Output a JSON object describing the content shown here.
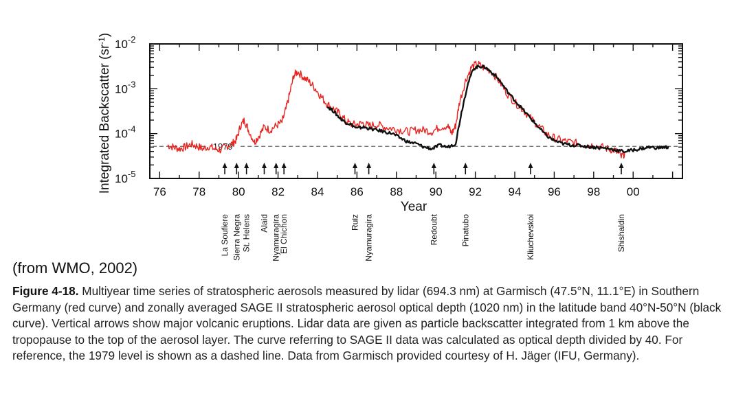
{
  "chart_data": {
    "type": "line",
    "ylabel": "Integrated Backscatter (sr",
    "ylabel_sup": "-1",
    "ylabel_close": ")",
    "xlabel": "Year",
    "y_scale": "log",
    "ylim": [
      1e-05,
      0.01
    ],
    "xlim": [
      1975.5,
      2002.5
    ],
    "y_tick_labels": [
      {
        "value": 1e-05,
        "base": "10",
        "exp": "-5"
      },
      {
        "value": 0.0001,
        "base": "10",
        "exp": "-4"
      },
      {
        "value": 0.001,
        "base": "10",
        "exp": "-3"
      },
      {
        "value": 0.01,
        "base": "10",
        "exp": "-2"
      }
    ],
    "x_ticks": [
      {
        "value": 1976,
        "label": "76"
      },
      {
        "value": 1978,
        "label": "78"
      },
      {
        "value": 1980,
        "label": "80"
      },
      {
        "value": 1982,
        "label": "82"
      },
      {
        "value": 1984,
        "label": "84"
      },
      {
        "value": 1986,
        "label": "86"
      },
      {
        "value": 1988,
        "label": "88"
      },
      {
        "value": 1990,
        "label": "90"
      },
      {
        "value": 1992,
        "label": "92"
      },
      {
        "value": 1994,
        "label": "94"
      },
      {
        "value": 1996,
        "label": "96"
      },
      {
        "value": 1998,
        "label": "98"
      },
      {
        "value": 2000,
        "label": "00"
      }
    ],
    "reference_line": {
      "label": "1979",
      "value": 5.2e-05
    },
    "series": [
      {
        "color": "#e8231f",
        "points": [
          [
            1976.4,
            5.5e-05
          ],
          [
            1976.7,
            5e-05
          ],
          [
            1977.0,
            4.6e-05
          ],
          [
            1977.3,
            5e-05
          ],
          [
            1977.6,
            5.8e-05
          ],
          [
            1977.9,
            5.2e-05
          ],
          [
            1978.2,
            4.6e-05
          ],
          [
            1978.5,
            5.2e-05
          ],
          [
            1978.8,
            4.5e-05
          ],
          [
            1979.1,
            4.3e-05
          ],
          [
            1979.4,
            5.3e-05
          ],
          [
            1979.7,
            6e-05
          ],
          [
            1979.9,
            7.5e-05
          ],
          [
            1980.1,
            0.00015
          ],
          [
            1980.3,
            0.0002
          ],
          [
            1980.5,
            0.00012
          ],
          [
            1980.8,
            6.5e-05
          ],
          [
            1981.0,
            8.5e-05
          ],
          [
            1981.3,
            0.00014
          ],
          [
            1981.6,
            0.00012
          ],
          [
            1981.9,
            0.00015
          ],
          [
            1982.2,
            0.00018
          ],
          [
            1982.4,
            0.00035
          ],
          [
            1982.6,
            0.0008
          ],
          [
            1982.8,
            0.002
          ],
          [
            1983.0,
            0.0024
          ],
          [
            1983.3,
            0.0018
          ],
          [
            1983.6,
            0.0014
          ],
          [
            1983.9,
            0.001
          ],
          [
            1984.2,
            0.00065
          ],
          [
            1984.5,
            0.00045
          ],
          [
            1984.8,
            0.00036
          ],
          [
            1985.1,
            0.00028
          ],
          [
            1985.4,
            0.0002
          ],
          [
            1985.7,
            0.00016
          ],
          [
            1986.0,
            0.00016
          ],
          [
            1986.3,
            0.00017
          ],
          [
            1986.6,
            0.00015
          ],
          [
            1987.0,
            0.00016
          ],
          [
            1987.4,
            0.00014
          ],
          [
            1987.8,
            0.00013
          ],
          [
            1988.2,
            0.00012
          ],
          [
            1988.6,
            0.00011
          ],
          [
            1989.0,
            0.00012
          ],
          [
            1989.4,
            0.00012
          ],
          [
            1989.8,
            0.00011
          ],
          [
            1990.2,
            0.00014
          ],
          [
            1990.6,
            0.00015
          ],
          [
            1990.8,
            0.0001
          ],
          [
            1991.0,
            0.00015
          ],
          [
            1991.2,
            0.0005
          ],
          [
            1991.5,
            0.0015
          ],
          [
            1991.8,
            0.003
          ],
          [
            1992.1,
            0.0036
          ],
          [
            1992.4,
            0.003
          ],
          [
            1992.8,
            0.0025
          ],
          [
            1993.2,
            0.0015
          ],
          [
            1993.6,
            0.0008
          ],
          [
            1994.0,
            0.0005
          ],
          [
            1994.4,
            0.00035
          ],
          [
            1994.8,
            0.00022
          ],
          [
            1995.2,
            0.00015
          ],
          [
            1995.6,
            0.0001
          ],
          [
            1996.0,
            8e-05
          ],
          [
            1996.4,
            7e-05
          ],
          [
            1996.8,
            6.5e-05
          ],
          [
            1997.2,
            6e-05
          ],
          [
            1997.6,
            5.5e-05
          ],
          [
            1998.0,
            5.5e-05
          ],
          [
            1998.4,
            5e-05
          ],
          [
            1998.8,
            4.5e-05
          ],
          [
            1999.1,
            4.2e-05
          ],
          [
            1999.4,
            3e-05
          ],
          [
            1999.6,
            3.8e-05
          ]
        ]
      },
      {
        "color": "#111111",
        "points": [
          [
            1984.5,
            0.0004
          ],
          [
            1984.8,
            0.00032
          ],
          [
            1985.1,
            0.00023
          ],
          [
            1985.4,
            0.00018
          ],
          [
            1985.7,
            0.00016
          ],
          [
            1986.0,
            0.00013
          ],
          [
            1986.3,
            0.00014
          ],
          [
            1986.6,
            0.00013
          ],
          [
            1987.0,
            0.00012
          ],
          [
            1987.4,
            0.00011
          ],
          [
            1987.8,
            0.0001
          ],
          [
            1988.2,
            8e-05
          ],
          [
            1988.6,
            6.5e-05
          ],
          [
            1989.0,
            6e-05
          ],
          [
            1989.4,
            5e-05
          ],
          [
            1989.8,
            4.6e-05
          ],
          [
            1990.2,
            5.5e-05
          ],
          [
            1990.6,
            5e-05
          ],
          [
            1991.0,
            6e-05
          ],
          [
            1991.3,
            0.0003
          ],
          [
            1991.6,
            0.0012
          ],
          [
            1991.9,
            0.0028
          ],
          [
            1992.2,
            0.0032
          ],
          [
            1992.5,
            0.003
          ],
          [
            1992.8,
            0.0024
          ],
          [
            1993.2,
            0.0016
          ],
          [
            1993.6,
            0.0009
          ],
          [
            1994.0,
            0.00055
          ],
          [
            1994.4,
            0.00035
          ],
          [
            1994.8,
            0.00022
          ],
          [
            1995.2,
            0.00014
          ],
          [
            1995.6,
            9e-05
          ],
          [
            1996.0,
            7e-05
          ],
          [
            1996.4,
            6e-05
          ],
          [
            1996.8,
            5.6e-05
          ],
          [
            1997.2,
            5.5e-05
          ],
          [
            1997.6,
            5.2e-05
          ],
          [
            1998.0,
            5e-05
          ],
          [
            1998.4,
            4.8e-05
          ],
          [
            1998.8,
            4.6e-05
          ],
          [
            1999.2,
            4.2e-05
          ],
          [
            1999.6,
            4e-05
          ],
          [
            2000.0,
            4.3e-05
          ],
          [
            2000.4,
            4.6e-05
          ],
          [
            2000.8,
            5e-05
          ],
          [
            2001.2,
            4.8e-05
          ],
          [
            2001.6,
            5e-05
          ],
          [
            2001.8,
            4.9e-05
          ]
        ]
      }
    ],
    "eruptions": [
      {
        "names": [
          "La Soufiere"
        ],
        "year": 1979.3
      },
      {
        "names": [
          "Sierra Negra"
        ],
        "year": 1979.9
      },
      {
        "names": [
          "St. Helens"
        ],
        "year": 1980.4
      },
      {
        "names": [
          "Alaid"
        ],
        "year": 1981.3
      },
      {
        "names": [
          "Nyamuragira"
        ],
        "year": 1981.9
      },
      {
        "names": [
          "El Chichon"
        ],
        "year": 1982.3
      },
      {
        "names": [
          "Ruiz"
        ],
        "year": 1985.9
      },
      {
        "names": [
          "Nyamuragira"
        ],
        "year": 1986.6
      },
      {
        "names": [
          "Redoubt"
        ],
        "year": 1989.9
      },
      {
        "names": [
          "Pinatubo"
        ],
        "year": 1991.5
      },
      {
        "names": [
          "Kliuchevskoi"
        ],
        "year": 1994.8
      },
      {
        "names": [
          "Shishaldin"
        ],
        "year": 1999.4
      }
    ]
  },
  "source_note": "(from WMO, 2002)",
  "caption": {
    "label": "Figure 4-18.",
    "text": " Multiyear time series of stratospheric aerosols measured by lidar (694.3 nm) at Garmisch (47.5°N, 11.1°E) in Southern Germany (red curve) and zonally averaged SAGE II stratospheric aerosol optical depth (1020 nm) in the latitude band 40°N-50°N (black curve).  Vertical arrows show major volcanic eruptions.  Lidar data are given as particle backscatter integrated from 1 km above the tropopause to the top of the aerosol layer. The curve referring to SAGE II data was calculated as optical depth divided by 40.  For reference, the 1979 level is shown as a dashed line.  Data from Garmisch provided courtesy of H. Jäger (IFU, Germany)."
  }
}
